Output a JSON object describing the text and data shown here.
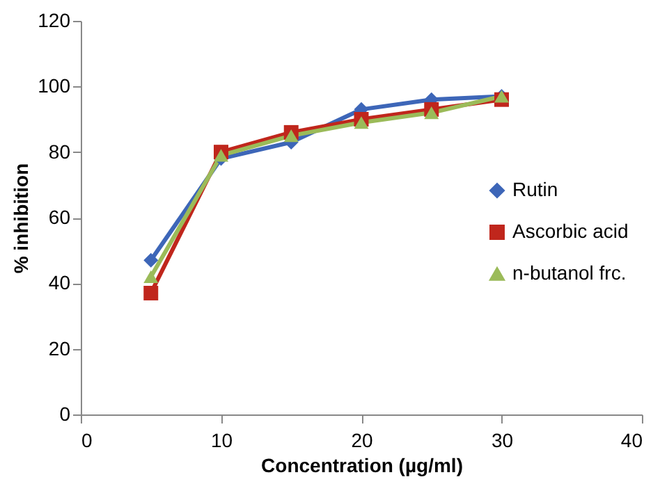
{
  "chart_data": {
    "type": "line",
    "xlabel": "Concentration (µg/ml)",
    "ylabel": "% inhibition",
    "x": [
      5,
      10,
      15,
      20,
      25,
      30
    ],
    "series": [
      {
        "name": "Rutin",
        "color": "#3d66b8",
        "marker": "diamond",
        "values": [
          47,
          78,
          83,
          93,
          96,
          97
        ]
      },
      {
        "name": "Ascorbic acid",
        "color": "#c0261c",
        "marker": "square",
        "values": [
          37,
          80,
          86,
          90,
          93,
          96
        ]
      },
      {
        "name": "n-butanol frc.",
        "color": "#9bbb59",
        "marker": "triangle",
        "values": [
          42,
          79,
          85,
          89,
          92,
          97
        ]
      }
    ],
    "xlim": [
      0,
      40
    ],
    "xticks": [
      0,
      10,
      20,
      30,
      40
    ],
    "ylim": [
      0,
      120
    ],
    "yticks": [
      0,
      20,
      40,
      60,
      80,
      100,
      120
    ],
    "grid": false,
    "legend": "right",
    "line_style": "solid"
  }
}
